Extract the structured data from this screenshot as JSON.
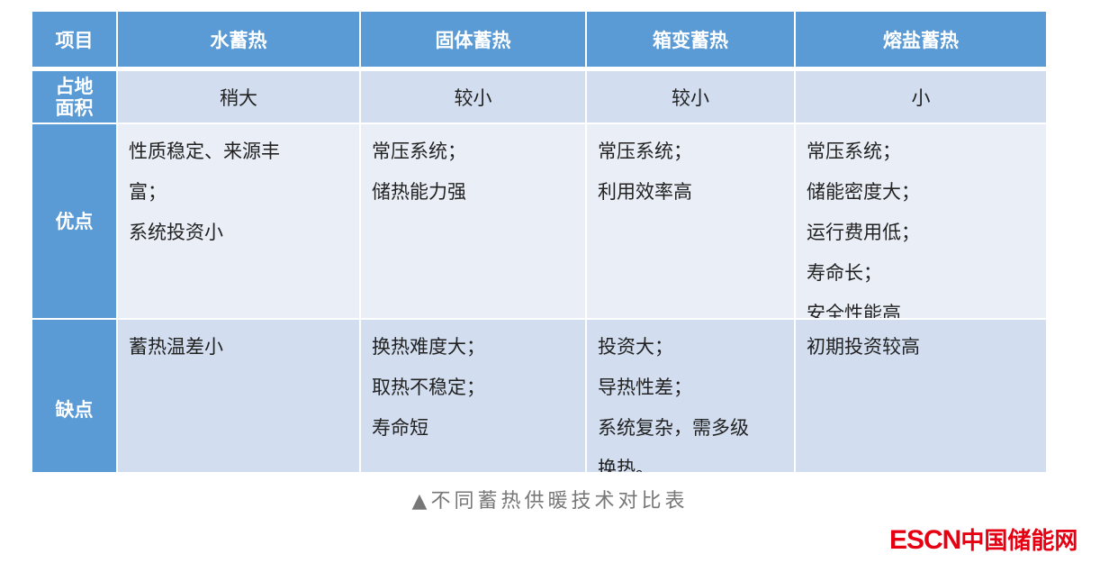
{
  "table": {
    "header": [
      "项目",
      "水蓄热",
      "固体蓄热",
      "箱变蓄热",
      "熔盐蓄热"
    ],
    "rows": [
      {
        "label": "占地面积",
        "cells": [
          [
            "稍大"
          ],
          [
            "较小"
          ],
          [
            "较小"
          ],
          [
            "小"
          ]
        ]
      },
      {
        "label": "优点",
        "cells": [
          [
            "性质稳定、来源丰",
            "富；",
            "系统投资小"
          ],
          [
            "常压系统；",
            "储热能力强"
          ],
          [
            "常压系统；",
            "利用效率高"
          ],
          [
            "常压系统；",
            "储能密度大；",
            "运行费用低；",
            "寿命长；",
            "安全性能高"
          ]
        ]
      },
      {
        "label": "缺点",
        "cells": [
          [
            "蓄热温差小"
          ],
          [
            "换热难度大；",
            "取热不稳定；",
            "寿命短"
          ],
          [
            "投资大；",
            "导热性差；",
            "系统复杂，需多级",
            "换热。"
          ],
          [
            "初期投资较高"
          ]
        ]
      }
    ]
  },
  "caption": "▲不同蓄热供暖技术对比表",
  "logo": {
    "en": "ESCN",
    "cn": "中国储能网",
    "color": "#e60012"
  },
  "colors": {
    "header": "#5b9bd5",
    "band": "#d2deef",
    "light": "#eaeff7"
  }
}
